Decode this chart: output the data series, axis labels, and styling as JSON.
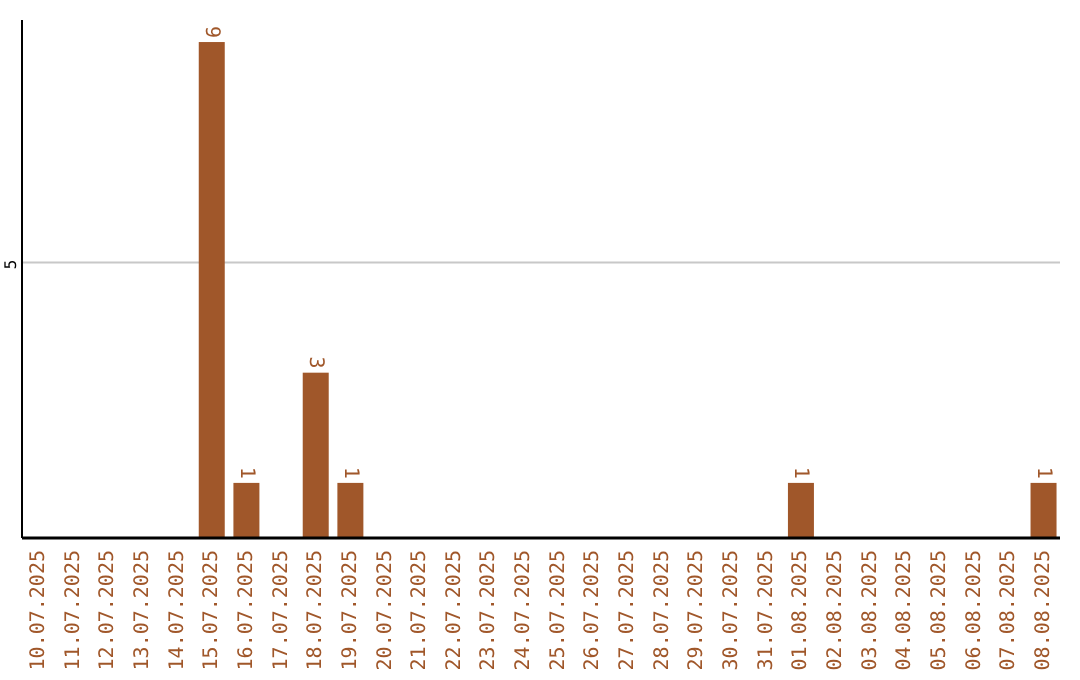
{
  "chart_data": {
    "type": "bar",
    "categories": [
      "10.07.2025",
      "11.07.2025",
      "12.07.2025",
      "13.07.2025",
      "14.07.2025",
      "15.07.2025",
      "16.07.2025",
      "17.07.2025",
      "18.07.2025",
      "19.07.2025",
      "20.07.2025",
      "21.07.2025",
      "22.07.2025",
      "23.07.2025",
      "24.07.2025",
      "25.07.2025",
      "26.07.2025",
      "27.07.2025",
      "28.07.2025",
      "29.07.2025",
      "30.07.2025",
      "31.07.2025",
      "01.08.2025",
      "02.08.2025",
      "03.08.2025",
      "04.08.2025",
      "05.08.2025",
      "06.08.2025",
      "07.08.2025",
      "08.08.2025"
    ],
    "values": [
      0,
      0,
      0,
      0,
      0,
      9,
      1,
      0,
      3,
      1,
      0,
      0,
      0,
      0,
      0,
      0,
      0,
      0,
      0,
      0,
      0,
      0,
      1,
      0,
      0,
      0,
      0,
      0,
      0,
      1
    ],
    "value_labels": [
      null,
      null,
      null,
      null,
      null,
      "9",
      "1",
      null,
      "3",
      "1",
      null,
      null,
      null,
      null,
      null,
      null,
      null,
      null,
      null,
      null,
      null,
      null,
      "1",
      null,
      null,
      null,
      null,
      null,
      null,
      "1"
    ],
    "color": "#a0572a",
    "ylim": [
      0,
      9.4
    ],
    "yticks": [
      5
    ],
    "grid": "y"
  }
}
